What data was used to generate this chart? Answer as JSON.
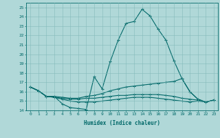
{
  "xlabel": "Humidex (Indice chaleur)",
  "bg_color": "#b0d8d8",
  "line_color": "#006868",
  "grid_color": "#80b8b8",
  "xlim": [
    -0.5,
    23.5
  ],
  "ylim": [
    14,
    25.5
  ],
  "yticks": [
    14,
    15,
    16,
    17,
    18,
    19,
    20,
    21,
    22,
    23,
    24,
    25
  ],
  "xticks": [
    0,
    1,
    2,
    3,
    4,
    5,
    6,
    7,
    8,
    9,
    10,
    11,
    12,
    13,
    14,
    15,
    16,
    17,
    18,
    19,
    20,
    21,
    22,
    23
  ],
  "line1_x": [
    0,
    1,
    2,
    3,
    4,
    5,
    6,
    7,
    8,
    9,
    10,
    11,
    12,
    13,
    14,
    15,
    16,
    17,
    18,
    19,
    20,
    21,
    22,
    23
  ],
  "line1_y": [
    16.5,
    16.1,
    15.5,
    15.5,
    14.7,
    14.3,
    14.2,
    14.1,
    17.6,
    16.3,
    19.2,
    21.5,
    23.3,
    23.5,
    24.8,
    24.1,
    22.7,
    21.5,
    19.3,
    17.4,
    16.0,
    15.2,
    14.9,
    15.1
  ],
  "line2_x": [
    0,
    1,
    2,
    3,
    4,
    5,
    6,
    7,
    8,
    9,
    10,
    11,
    12,
    13,
    14,
    15,
    16,
    17,
    18,
    19,
    20,
    21,
    22,
    23
  ],
  "line2_y": [
    16.5,
    16.1,
    15.5,
    15.5,
    15.4,
    15.3,
    15.3,
    15.5,
    15.6,
    15.8,
    16.1,
    16.3,
    16.5,
    16.6,
    16.7,
    16.8,
    16.9,
    17.0,
    17.1,
    17.4,
    16.0,
    15.2,
    14.9,
    15.1
  ],
  "line3_x": [
    0,
    1,
    2,
    3,
    4,
    5,
    6,
    7,
    8,
    9,
    10,
    11,
    12,
    13,
    14,
    15,
    16,
    17,
    18,
    19,
    20,
    21,
    22,
    23
  ],
  "line3_y": [
    16.5,
    16.1,
    15.5,
    15.4,
    15.3,
    15.2,
    15.2,
    15.3,
    15.3,
    15.4,
    15.5,
    15.6,
    15.6,
    15.7,
    15.7,
    15.7,
    15.7,
    15.6,
    15.5,
    15.3,
    15.2,
    15.1,
    14.9,
    15.1
  ],
  "line4_x": [
    0,
    1,
    2,
    3,
    4,
    5,
    6,
    7,
    8,
    9,
    10,
    11,
    12,
    13,
    14,
    15,
    16,
    17,
    18,
    19,
    20,
    21,
    22,
    23
  ],
  "line4_y": [
    16.5,
    16.1,
    15.5,
    15.4,
    15.2,
    15.0,
    14.9,
    14.9,
    14.9,
    15.0,
    15.1,
    15.2,
    15.3,
    15.4,
    15.4,
    15.4,
    15.3,
    15.2,
    15.1,
    15.0,
    14.9,
    15.0,
    14.9,
    15.1
  ]
}
